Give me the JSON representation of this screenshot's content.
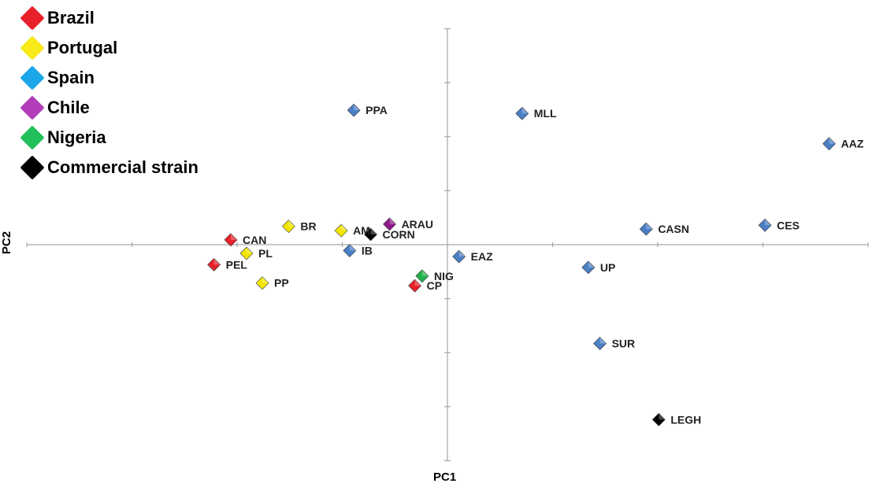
{
  "chart_data": {
    "type": "scatter",
    "xlabel": "PC1",
    "ylabel": "PC2",
    "xlim": [
      -4,
      4
    ],
    "ylim": [
      -4,
      4
    ],
    "grid": false,
    "legend_position": "top-left",
    "series": [
      {
        "name": "Brazil",
        "color": "#e8202a",
        "points": [
          {
            "label": "CAN",
            "x": -2.06,
            "y": 0.09
          },
          {
            "label": "PEL",
            "x": -2.22,
            "y": -0.37
          },
          {
            "label": "CP",
            "x": -0.31,
            "y": -0.76
          }
        ]
      },
      {
        "name": "Portugal",
        "color": "#f2e600",
        "points": [
          {
            "label": "BR",
            "x": -1.51,
            "y": 0.34
          },
          {
            "label": "AM",
            "x": -1.01,
            "y": 0.26
          },
          {
            "label": "PL",
            "x": -1.91,
            "y": -0.16
          },
          {
            "label": "PP",
            "x": -1.76,
            "y": -0.71
          }
        ]
      },
      {
        "name": "Spain",
        "color": "#4a7fc4",
        "points": [
          {
            "label": "PPA",
            "x": -0.89,
            "y": 2.49
          },
          {
            "label": "MLL",
            "x": 0.71,
            "y": 2.43
          },
          {
            "label": "AAZ",
            "x": 3.63,
            "y": 1.87
          },
          {
            "label": "IB",
            "x": -0.93,
            "y": -0.11
          },
          {
            "label": "EAZ",
            "x": 0.11,
            "y": -0.22
          },
          {
            "label": "CASN",
            "x": 1.89,
            "y": 0.29
          },
          {
            "label": "CES",
            "x": 3.02,
            "y": 0.36
          },
          {
            "label": "UP",
            "x": 1.34,
            "y": -0.42
          },
          {
            "label": "SUR",
            "x": 1.45,
            "y": -1.83
          }
        ]
      },
      {
        "name": "Chile",
        "color": "#8b1a8b",
        "points": [
          {
            "label": "ARAU",
            "x": -0.55,
            "y": 0.38
          }
        ]
      },
      {
        "name": "Nigeria",
        "color": "#22b24a",
        "points": [
          {
            "label": "NIG",
            "x": -0.24,
            "y": -0.58
          }
        ]
      },
      {
        "name": "Commercial strain",
        "color": "#000000",
        "points": [
          {
            "label": "CORN",
            "x": -0.73,
            "y": 0.19
          },
          {
            "label": "LEGH",
            "x": 2.01,
            "y": -3.24
          }
        ]
      }
    ]
  },
  "legend": [
    {
      "label": "Brazil",
      "color": "#e8202a"
    },
    {
      "label": "Portugal",
      "color": "#f7ea16"
    },
    {
      "label": "Spain",
      "color": "#1aa6e8"
    },
    {
      "label": "Chile",
      "color": "#b13db8"
    },
    {
      "label": "Nigeria",
      "color": "#22c05a"
    },
    {
      "label": "Commercial strain",
      "color": "#000000"
    }
  ]
}
